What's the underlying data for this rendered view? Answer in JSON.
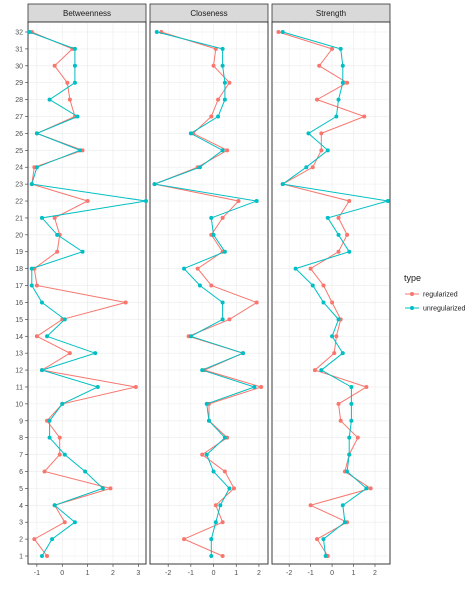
{
  "chart_data": {
    "type": "line",
    "facets": [
      {
        "title": "Betweenness",
        "xlim": [
          -1.35,
          3.3
        ],
        "xticks": [
          -1,
          0,
          1,
          2,
          3
        ],
        "series": [
          {
            "name": "regularized",
            "values": [
              -0.6,
              -1.1,
              0.1,
              -0.3,
              1.9,
              -0.7,
              -0.1,
              -0.1,
              -0.6,
              0.0,
              2.9,
              -0.8,
              0.3,
              -1.0,
              0.0,
              2.5,
              -1.0,
              -1.1,
              -0.2,
              -0.1,
              -0.3,
              1.0,
              -1.2,
              -1.1,
              0.8,
              -1.0,
              0.5,
              0.3,
              0.2,
              -0.3,
              0.4,
              -1.2
            ]
          },
          {
            "name": "unregularized",
            "values": [
              -0.8,
              -0.4,
              0.5,
              -0.3,
              1.6,
              0.9,
              0.1,
              -0.5,
              -0.5,
              0.0,
              1.4,
              -0.8,
              1.3,
              -0.6,
              0.1,
              -0.8,
              -1.2,
              -1.2,
              0.8,
              -0.2,
              -0.8,
              3.3,
              -1.2,
              -1.0,
              0.7,
              -1.0,
              0.6,
              -0.5,
              0.5,
              0.5,
              0.5,
              -1.3
            ]
          }
        ]
      },
      {
        "title": "Closeness",
        "xlim": [
          -2.8,
          2.4
        ],
        "xticks": [
          -2,
          -1,
          0,
          1,
          2
        ],
        "series": [
          {
            "name": "regularized",
            "values": [
              0.4,
              -1.3,
              0.4,
              0.1,
              0.9,
              0.5,
              -0.5,
              0.6,
              -0.2,
              -0.2,
              2.1,
              -0.4,
              1.3,
              -1.1,
              0.7,
              1.9,
              -0.1,
              -0.7,
              0.4,
              -0.1,
              0.4,
              1.1,
              -2.6,
              -0.7,
              0.6,
              -0.9,
              -0.1,
              0.2,
              0.7,
              0.0,
              0.1,
              -2.3
            ]
          },
          {
            "name": "unregularized",
            "values": [
              -0.1,
              -0.1,
              0.1,
              0.3,
              0.7,
              0.0,
              -0.3,
              0.5,
              -0.2,
              -0.3,
              1.8,
              -0.5,
              1.3,
              -1.0,
              0.4,
              0.4,
              -0.6,
              -1.3,
              0.5,
              0.0,
              -0.1,
              1.9,
              -2.6,
              -0.6,
              0.4,
              -1.0,
              0.2,
              0.5,
              0.5,
              0.4,
              0.4,
              -2.5
            ]
          }
        ]
      },
      {
        "title": "Strength",
        "xlim": [
          -2.8,
          2.7
        ],
        "xticks": [
          -2,
          -1,
          0,
          1,
          2
        ],
        "series": [
          {
            "name": "regularized",
            "values": [
              -0.2,
              -0.7,
              0.7,
              -1.0,
              1.8,
              0.6,
              0.8,
              1.2,
              0.4,
              0.3,
              1.6,
              -0.8,
              0.1,
              0.2,
              0.4,
              0.0,
              -0.4,
              -1.0,
              0.3,
              0.7,
              0.3,
              0.8,
              -2.3,
              -0.9,
              -0.5,
              -0.5,
              1.5,
              -0.7,
              0.7,
              -0.6,
              0.0,
              -2.5
            ]
          },
          {
            "name": "unregularized",
            "values": [
              -0.3,
              -0.4,
              0.6,
              0.5,
              1.6,
              0.7,
              0.8,
              0.8,
              0.9,
              0.9,
              0.9,
              -0.5,
              0.5,
              0.0,
              0.3,
              -0.4,
              -0.9,
              -1.7,
              0.8,
              0.3,
              -0.2,
              2.6,
              -2.3,
              -1.2,
              -0.2,
              -1.1,
              0.2,
              0.3,
              0.5,
              0.5,
              0.4,
              -2.3
            ]
          }
        ]
      }
    ],
    "y": [
      1,
      2,
      3,
      4,
      5,
      6,
      7,
      8,
      9,
      10,
      11,
      12,
      13,
      14,
      15,
      16,
      17,
      18,
      19,
      20,
      21,
      22,
      23,
      24,
      25,
      26,
      27,
      28,
      29,
      30,
      31,
      32
    ],
    "ylim": [
      1,
      32
    ],
    "legend": {
      "title": "type",
      "position": "right",
      "entries": [
        {
          "label": "regularized",
          "color": "#F8766D"
        },
        {
          "label": "unregularized",
          "color": "#00BFC4"
        }
      ]
    },
    "grid": true
  }
}
